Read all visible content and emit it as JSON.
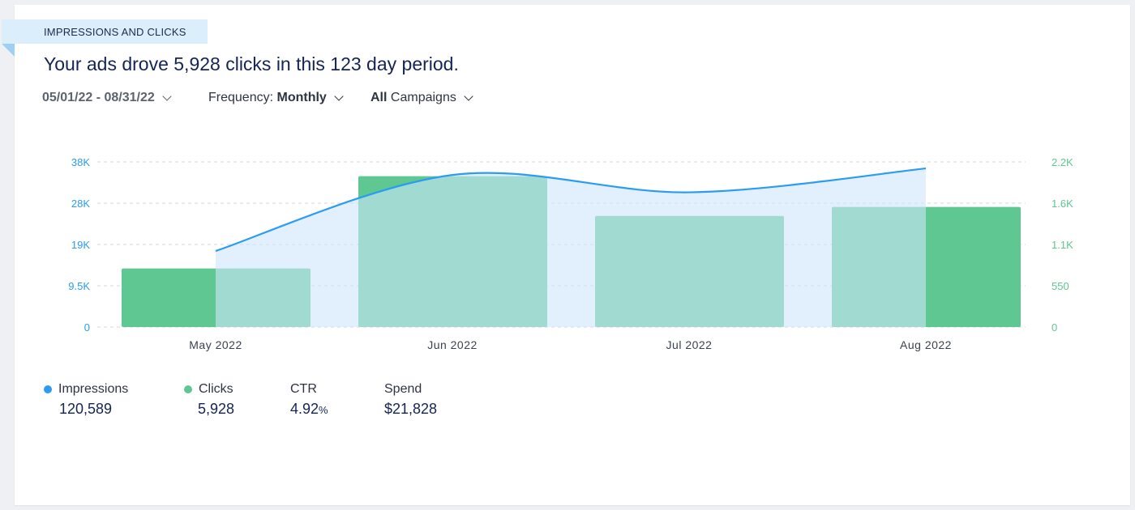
{
  "section_label": "IMPRESSIONS AND CLICKS",
  "headline": "Your ads drove 5,928 clicks in this 123 day period.",
  "filters": {
    "date_range": "05/01/22 - 08/31/22",
    "frequency_label": "Frequency:",
    "frequency_value": "Monthly",
    "campaigns_value": "All",
    "campaigns_label": "Campaigns"
  },
  "chart_data": {
    "type": "bar",
    "categories": [
      "May 2022",
      "Jun 2022",
      "Jul 2022",
      "Aug 2022"
    ],
    "series": [
      {
        "name": "Clicks",
        "chart_type": "bar",
        "axis": "right",
        "values": [
          780,
          2010,
          1480,
          1600
        ]
      },
      {
        "name": "Impressions",
        "chart_type": "area",
        "axis": "left",
        "values": [
          17500,
          35000,
          31000,
          36500
        ]
      }
    ],
    "left_axis": {
      "ticks": [
        "0",
        "9.5K",
        "19K",
        "28K",
        "38K"
      ],
      "tick_values": [
        0,
        9500,
        19000,
        28500,
        38000
      ],
      "ylim": [
        0,
        38000
      ]
    },
    "right_axis": {
      "ticks": [
        "0",
        "550",
        "1.1K",
        "1.6K",
        "2.2K"
      ],
      "tick_values": [
        0,
        550,
        1100,
        1650,
        2200
      ],
      "ylim": [
        0,
        2200
      ]
    },
    "grid": true,
    "colors": {
      "impressions": "#2b9cf2",
      "impressions_fill": "#cfe6fb",
      "clicks": "#5ec792",
      "left_axis": "#2b9cf2",
      "right_axis": "#5ec792"
    }
  },
  "legend": [
    {
      "label": "Impressions",
      "value": "120,589",
      "color": "#2b9cf2"
    },
    {
      "label": "Clicks",
      "value": "5,928",
      "color": "#5ec792"
    },
    {
      "label": "CTR",
      "value": "4.92",
      "suffix": "%"
    },
    {
      "label": "Spend",
      "value": "$21,828"
    }
  ]
}
